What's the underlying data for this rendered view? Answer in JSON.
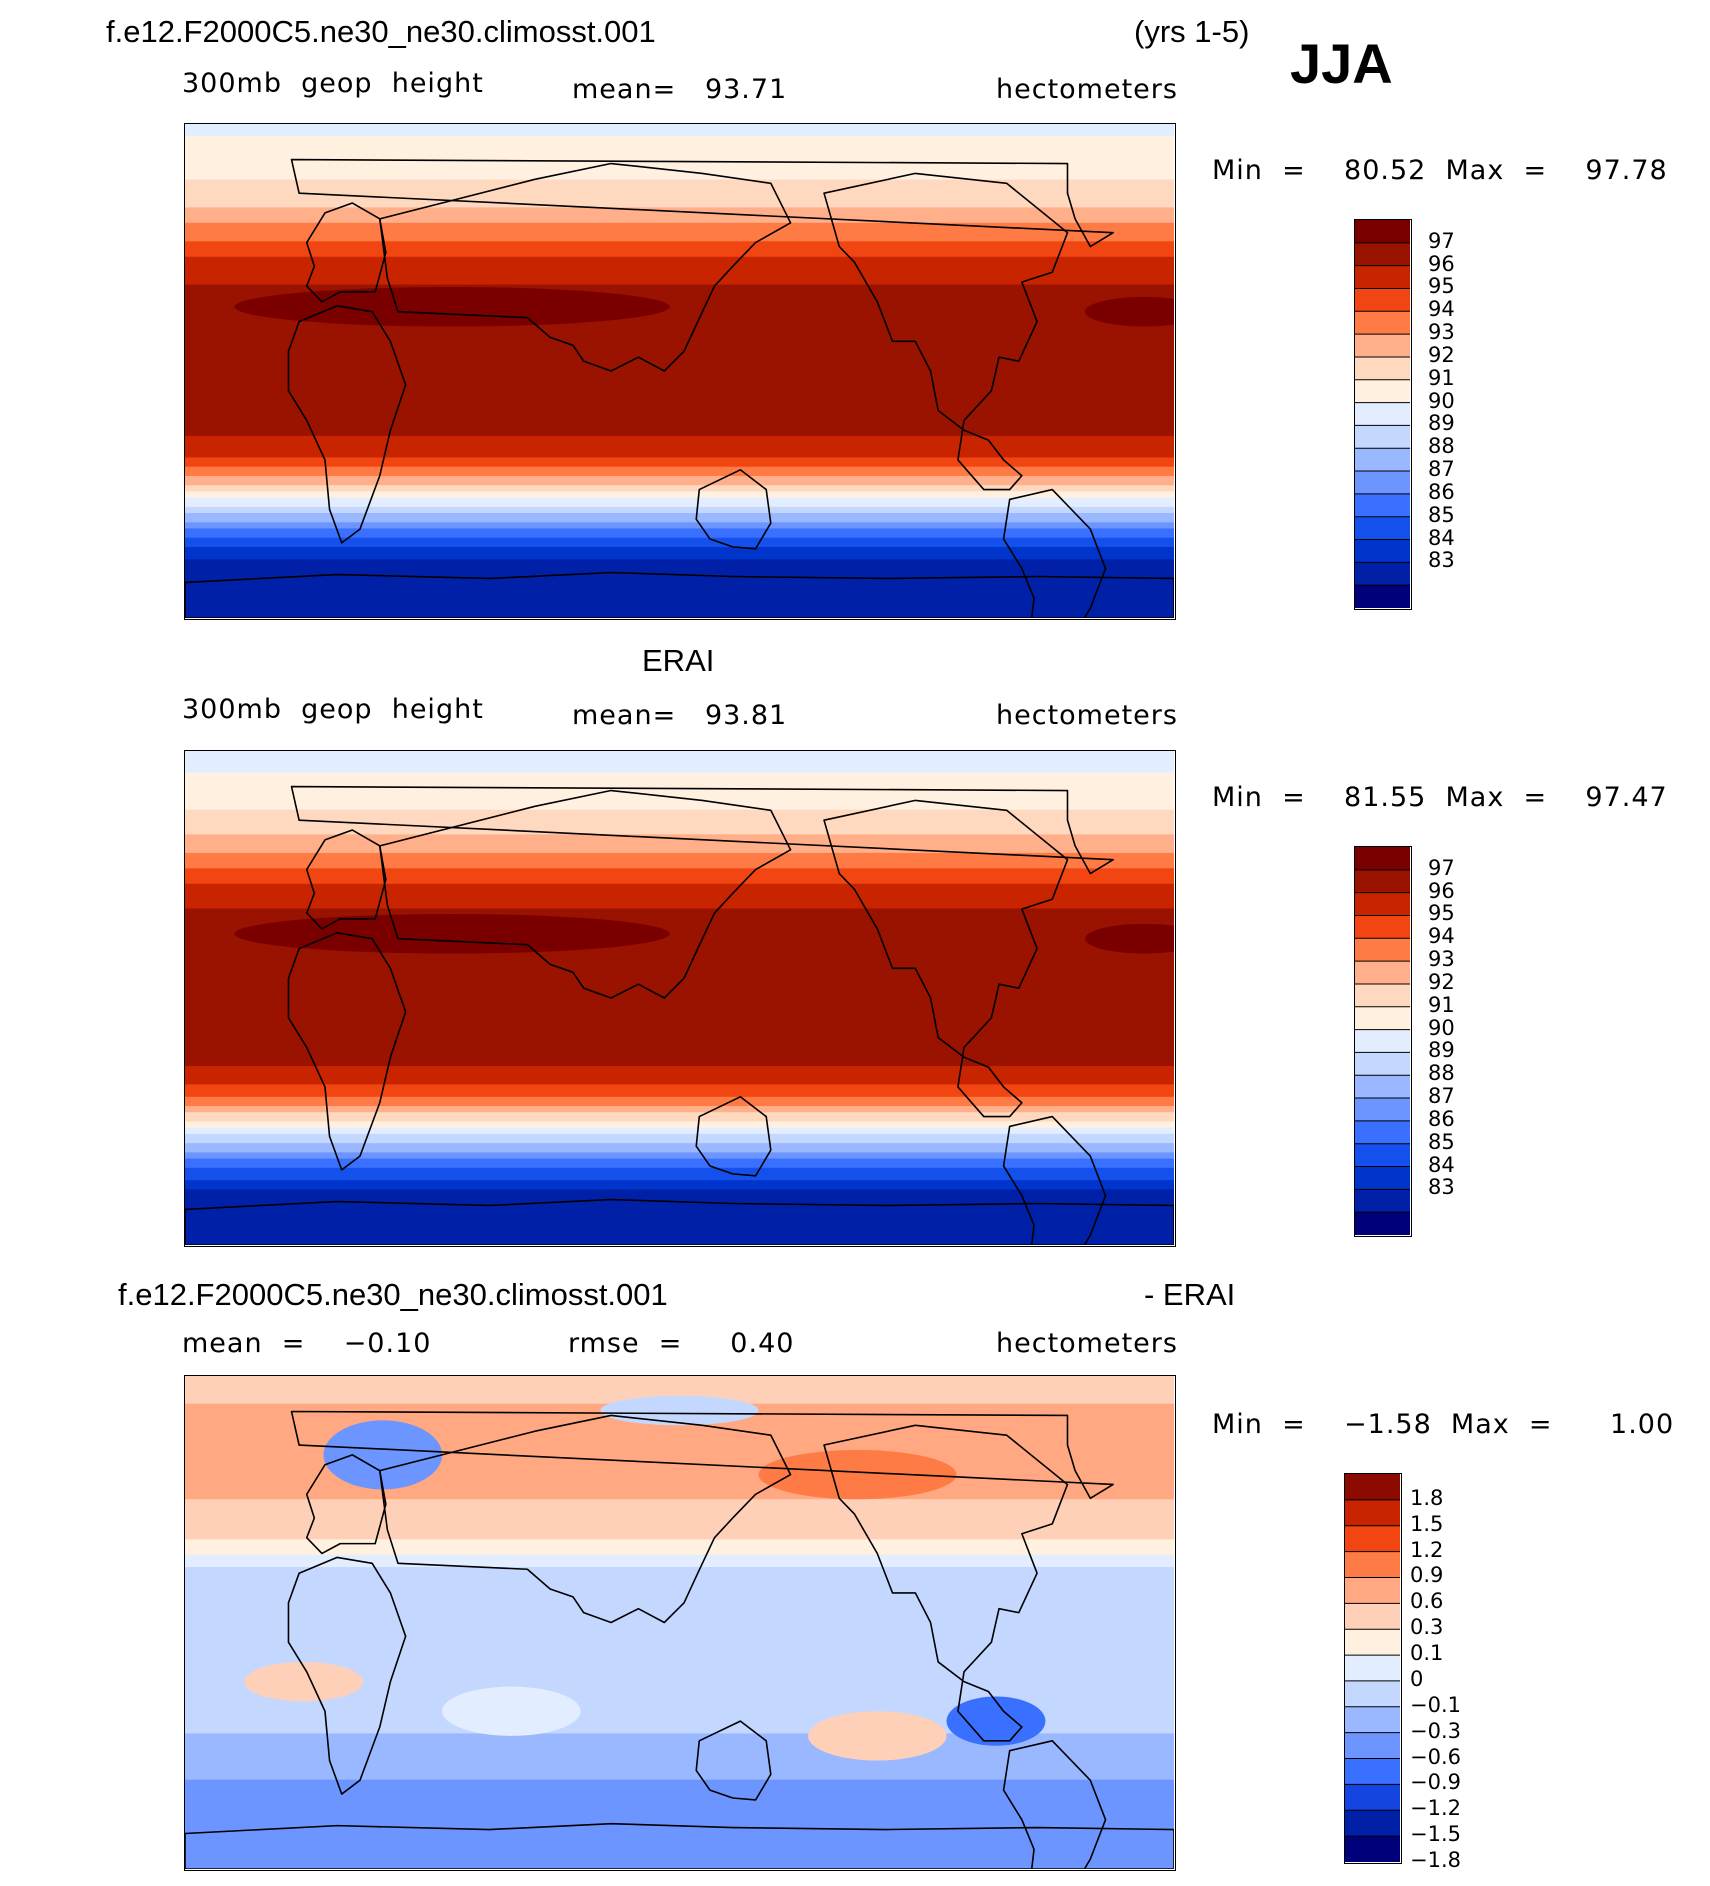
{
  "header": {
    "case_title": "f.e12.F2000C5.ne30_ne30.climosst.001",
    "years": "(yrs 1-5)",
    "season": "JJA"
  },
  "panel1": {
    "variable": "300mb  geop  height",
    "mean_label": "mean=   93.71",
    "units": "hectometers",
    "minmax": "Min  =    80.52  Max  =    97.78"
  },
  "panel2": {
    "dataset": "ERAI",
    "variable": "300mb  geop  height",
    "mean_label": "mean=   93.81",
    "units": "hectometers",
    "minmax": "Min  =    81.55  Max  =    97.47"
  },
  "panel3": {
    "case_title": "f.e12.F2000C5.ne30_ne30.climosst.001",
    "minus_label": "- ERAI",
    "mean_label": "mean  =    −0.10",
    "rmse_label": "rmse  =     0.40",
    "units": "hectometers",
    "minmax": "Min  =    −1.58  Max  =      1.00"
  },
  "colors": {
    "abs_palette": [
      "#00007a",
      "#0020a8",
      "#0035cc",
      "#1450ec",
      "#3a70ff",
      "#6c95ff",
      "#9ab8ff",
      "#c4d8ff",
      "#e2eeff",
      "#fff0e0",
      "#ffd8c0",
      "#ffb08a",
      "#ff7b45",
      "#f24612",
      "#c82400",
      "#9a1200",
      "#7a0000"
    ],
    "diff_palette": [
      "#00007a",
      "#0020a8",
      "#1545e0",
      "#3a70ff",
      "#6c95ff",
      "#9ab8ff",
      "#c4d8ff",
      "#e2eeff",
      "#fff0e0",
      "#ffd0b8",
      "#ffa882",
      "#ff7b45",
      "#f24612",
      "#c82400",
      "#8c0a00"
    ]
  },
  "chart_data": [
    {
      "type": "heatmap",
      "title": "300mb geop height",
      "subtitle": "f.e12.F2000C5.ne30_ne30.climosst.001 (yrs 1-5) JJA",
      "units": "hectometers",
      "mean": 93.71,
      "min": 80.52,
      "max": 97.78,
      "colorbar_levels": [
        "97",
        "96",
        "95",
        "94",
        "93",
        "92",
        "91",
        "90",
        "89",
        "88",
        "87",
        "86",
        "85",
        "84",
        "83"
      ],
      "zonal_profile": {
        "lat": [
          90,
          80,
          70,
          60,
          50,
          40,
          30,
          20,
          10,
          0,
          -10,
          -20,
          -30,
          -40,
          -50,
          -60,
          -70,
          -80,
          -90
        ],
        "value": [
          89.6,
          90.4,
          91.0,
          92.0,
          93.6,
          95.2,
          96.2,
          96.6,
          96.6,
          96.5,
          96.5,
          96.4,
          95.4,
          92.6,
          88.6,
          85.2,
          82.6,
          81.2,
          80.7
        ]
      }
    },
    {
      "type": "heatmap",
      "title": "300mb geop height",
      "subtitle": "ERAI",
      "units": "hectometers",
      "mean": 93.81,
      "min": 81.55,
      "max": 97.47,
      "colorbar_levels": [
        "97",
        "96",
        "95",
        "94",
        "93",
        "92",
        "91",
        "90",
        "89",
        "88",
        "87",
        "86",
        "85",
        "84",
        "83"
      ],
      "zonal_profile": {
        "lat": [
          90,
          80,
          70,
          60,
          50,
          40,
          30,
          20,
          10,
          0,
          -10,
          -20,
          -30,
          -40,
          -50,
          -60,
          -70,
          -80,
          -90
        ],
        "value": [
          89.4,
          90.2,
          90.9,
          91.9,
          93.5,
          95.3,
          96.3,
          96.6,
          96.6,
          96.5,
          96.5,
          96.4,
          95.5,
          92.8,
          88.9,
          85.6,
          83.0,
          81.9,
          81.6
        ]
      }
    },
    {
      "type": "heatmap",
      "title": "f.e12.F2000C5.ne30_ne30.climosst.001 - ERAI",
      "units": "hectometers",
      "mean": -0.1,
      "rmse": 0.4,
      "min": -1.58,
      "max": 1.0,
      "colorbar_levels": [
        "1.8",
        "1.5",
        "1.2",
        "0.9",
        "0.6",
        "0.3",
        "0.1",
        "0",
        "−0.1",
        "−0.3",
        "−0.6",
        "−0.9",
        "−1.2",
        "−1.5",
        "−1.8"
      ],
      "zonal_profile": {
        "lat": [
          90,
          80,
          70,
          60,
          50,
          40,
          30,
          20,
          10,
          0,
          -10,
          -20,
          -30,
          -40,
          -50,
          -60,
          -70,
          -80,
          -90
        ],
        "value": [
          0.25,
          0.3,
          0.35,
          0.3,
          0.35,
          0.25,
          0.1,
          -0.1,
          -0.2,
          -0.25,
          -0.25,
          -0.25,
          -0.2,
          -0.3,
          -0.45,
          -0.65,
          -0.75,
          -0.85,
          -0.8
        ]
      }
    }
  ]
}
